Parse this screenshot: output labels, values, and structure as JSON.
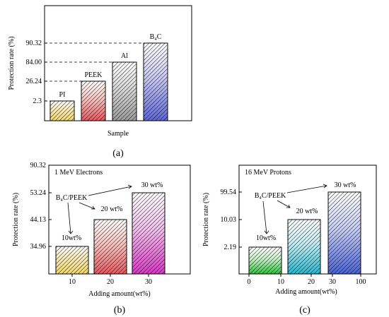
{
  "chart_data": [
    {
      "type": "bar",
      "panel_label": "(a)",
      "categories": [
        "PI",
        "PEEK",
        "Al",
        "B4C"
      ],
      "bar_labels": [
        "PI",
        "PEEK",
        "Al",
        "B₄C"
      ],
      "values": [
        2.3,
        26.24,
        84.0,
        90.32
      ],
      "ytick_labels": [
        "2.3",
        "26.24",
        "84.00",
        "90.32"
      ],
      "ylabel": "Protection rate (%)",
      "xlabel": "Sample",
      "title": "",
      "colors": [
        [
          "#f2d76e",
          "#f7e9b3"
        ],
        [
          "#e6585f",
          "#f6c4c0"
        ],
        [
          "#9c9c9c",
          "#d8d8d8"
        ],
        [
          "#5f67d8",
          "#c9c9f2"
        ]
      ]
    },
    {
      "type": "bar",
      "panel_label": "(b)",
      "title": "1 MeV Electrons",
      "categories": [
        "10",
        "20",
        "30"
      ],
      "bar_labels": [
        "10wt%",
        "20 wt%",
        "30 wt%"
      ],
      "values": [
        34.96,
        44.13,
        53.24
      ],
      "ytick_labels": [
        "34.96",
        "44.13",
        "53.24",
        "90.32"
      ],
      "annotation": "B₄C/PEEK",
      "xtick_labels": [
        "10",
        "20",
        "30"
      ],
      "ylabel": "Protection rate (%)",
      "xlabel": "Adding amount(wt%)",
      "colors": [
        [
          "#f2d76e",
          "#f7e9b3"
        ],
        [
          "#e6585f",
          "#f6c4c0"
        ],
        [
          "#d83ac5",
          "#f2c1ec"
        ]
      ]
    },
    {
      "type": "bar",
      "panel_label": "(c)",
      "title": "16 MeV Protons",
      "categories": [
        "10",
        "20",
        "30"
      ],
      "bar_labels": [
        "10wt%",
        "20 wt%",
        "30 wt%"
      ],
      "values": [
        2.19,
        10.03,
        99.54
      ],
      "ytick_labels": [
        "2.19",
        "10.03",
        "99.54"
      ],
      "annotation": "B₄C/PEEK",
      "xtick_labels": [
        "0",
        "10",
        "20",
        "30",
        "100"
      ],
      "ylabel": "Protection rate (%)",
      "xlabel": "Adding amount(wt%)",
      "colors": [
        [
          "#2fc23a",
          "#c6efc8"
        ],
        [
          "#2ab8cf",
          "#c4edf3"
        ],
        [
          "#4c63d6",
          "#c8cff3"
        ]
      ]
    }
  ]
}
